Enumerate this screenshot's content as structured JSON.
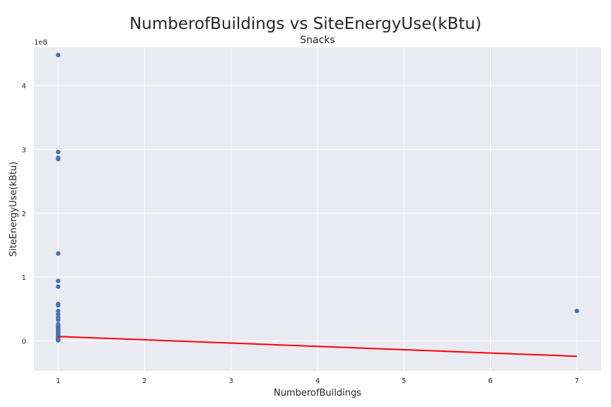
{
  "title": "NumberofBuildings vs SiteEnergyUse(kBtu)",
  "chart_data": {
    "type": "scatter",
    "title": "Snacks",
    "xlabel": "NumberofBuildings",
    "ylabel": "SiteEnergyUse(kBtu)",
    "y_offset_label": "1e8",
    "xlim": [
      0.72,
      7.28
    ],
    "ylim": [
      -0.47,
      4.6
    ],
    "x_ticks": [
      1,
      2,
      3,
      4,
      5,
      6,
      7
    ],
    "y_ticks": [
      0,
      1,
      2,
      3,
      4
    ],
    "grid": true,
    "colors": {
      "points": "#4c72b0",
      "fit_line": "#ff0000",
      "plot_bg": "#eaeaf2",
      "grid": "#ffffff"
    },
    "series": [
      {
        "type": "scatter",
        "x": [
          1,
          1,
          1,
          1,
          1,
          1,
          1,
          1,
          1,
          1,
          1,
          1,
          1,
          1,
          1,
          1,
          1,
          1,
          1,
          1,
          1,
          1,
          1,
          1,
          1,
          1,
          1,
          1,
          1,
          1,
          1,
          1,
          1,
          1,
          1,
          1,
          1,
          1,
          1,
          1,
          1,
          1,
          1,
          7
        ],
        "y": [
          4.48,
          2.96,
          2.87,
          2.85,
          1.37,
          0.94,
          0.85,
          0.58,
          0.56,
          0.47,
          0.42,
          0.37,
          0.33,
          0.26,
          0.24,
          0.22,
          0.21,
          0.2,
          0.19,
          0.18,
          0.17,
          0.16,
          0.15,
          0.14,
          0.13,
          0.12,
          0.11,
          0.1,
          0.09,
          0.085,
          0.08,
          0.07,
          0.065,
          0.06,
          0.05,
          0.045,
          0.04,
          0.035,
          0.03,
          0.025,
          0.02,
          0.015,
          0.01,
          0.47
        ]
      },
      {
        "type": "line",
        "x": [
          1,
          7
        ],
        "y": [
          0.07,
          -0.24
        ]
      }
    ]
  }
}
